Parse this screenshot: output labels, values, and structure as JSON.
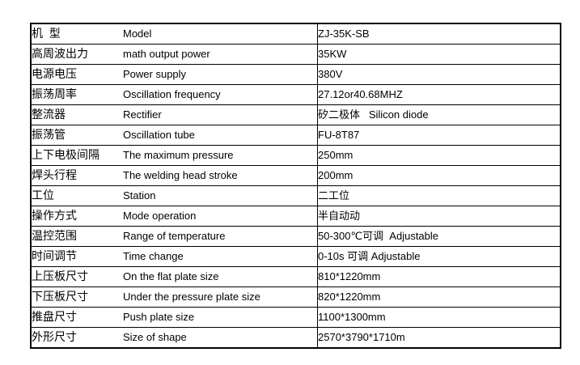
{
  "table": {
    "name": "product-specification-table",
    "border_color": "#000000",
    "text_color": "#000000",
    "background_color": "#ffffff",
    "columns": [
      "chinese_label",
      "english_label",
      "value"
    ],
    "rows": [
      {
        "cn": "机  型",
        "en": "Model",
        "value": "ZJ-35K-SB"
      },
      {
        "cn": "高周波出力",
        "en": "math output power",
        "value": "35KW"
      },
      {
        "cn": "电源电压",
        "en": "Power supply",
        "value": "380V"
      },
      {
        "cn": "振荡周率",
        "en": "Oscillation frequency",
        "value": "27.12or40.68MHZ"
      },
      {
        "cn": "整流器",
        "en": "Rectifier",
        "value": "矽二极体   Silicon diode"
      },
      {
        "cn": "振荡管",
        "en": "Oscillation tube",
        "value": "FU-8T87"
      },
      {
        "cn": "上下电极间隔",
        "en": "The maximum pressure",
        "value": "250mm"
      },
      {
        "cn": "焊头行程",
        "en": "The welding head stroke",
        "value": "200mm"
      },
      {
        "cn": "工位",
        "en": "Station",
        "value": "二工位"
      },
      {
        "cn": "操作方式",
        "en": "Mode operation",
        "value": "半自动动"
      },
      {
        "cn": "温控范围",
        "en": "Range of temperature",
        "value": "50-300℃可调  Adjustable"
      },
      {
        "cn": "时间调节",
        "en": "Time change",
        "value": "0-10s 可调 Adjustable"
      },
      {
        "cn": "上压板尺寸",
        "en": "On the flat plate size",
        "value": "810*1220mm"
      },
      {
        "cn": "下压板尺寸",
        "en": "Under the pressure plate size",
        "value": "820*1220mm"
      },
      {
        "cn": "推盘尺寸",
        "en": "Push plate size",
        "value": "1100*1300mm"
      },
      {
        "cn": "外形尺寸",
        "en": "Size of shape",
        "value": "2570*3790*1710m"
      }
    ]
  }
}
